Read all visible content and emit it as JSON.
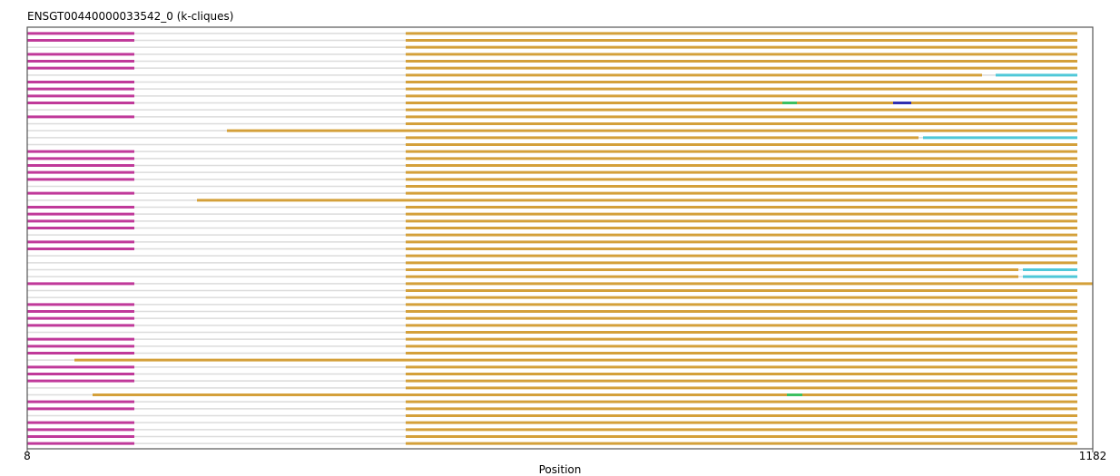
{
  "chart_data": {
    "type": "segments",
    "title": "ENSGT00440000033542_0 (k-cliques)",
    "xlabel": "Position",
    "xlim": [
      8,
      1182
    ],
    "xticks": [
      8,
      1182
    ],
    "colors": {
      "g": "#dcdcdc",
      "m": "#c0399a",
      "o": "#d4a03a",
      "c": "#4fc8d8",
      "b": "#3030b0",
      "e": "#3cc060"
    },
    "rows": [
      [
        [
          8,
          1165,
          "g"
        ],
        [
          8,
          126,
          "m"
        ],
        [
          425,
          1165,
          "o"
        ]
      ],
      [
        [
          8,
          1165,
          "g"
        ],
        [
          8,
          126,
          "m"
        ],
        [
          425,
          1165,
          "o"
        ]
      ],
      [
        [
          8,
          1165,
          "g"
        ],
        [
          425,
          1165,
          "o"
        ]
      ],
      [
        [
          8,
          1165,
          "g"
        ],
        [
          8,
          126,
          "m"
        ],
        [
          425,
          1165,
          "o"
        ]
      ],
      [
        [
          8,
          1165,
          "g"
        ],
        [
          8,
          126,
          "m"
        ],
        [
          425,
          1165,
          "o"
        ]
      ],
      [
        [
          8,
          1165,
          "g"
        ],
        [
          8,
          126,
          "m"
        ],
        [
          425,
          1165,
          "o"
        ]
      ],
      [
        [
          8,
          1165,
          "g"
        ],
        [
          425,
          1060,
          "o"
        ],
        [
          1075,
          1165,
          "c"
        ]
      ],
      [
        [
          8,
          1165,
          "g"
        ],
        [
          8,
          126,
          "m"
        ],
        [
          425,
          1165,
          "o"
        ]
      ],
      [
        [
          8,
          1165,
          "g"
        ],
        [
          8,
          126,
          "m"
        ],
        [
          425,
          1165,
          "o"
        ]
      ],
      [
        [
          8,
          1165,
          "g"
        ],
        [
          8,
          126,
          "m"
        ],
        [
          425,
          1165,
          "o"
        ]
      ],
      [
        [
          8,
          1165,
          "g"
        ],
        [
          8,
          126,
          "m"
        ],
        [
          425,
          1165,
          "o"
        ],
        [
          840,
          856,
          "e"
        ],
        [
          962,
          982,
          "b"
        ]
      ],
      [
        [
          8,
          1165,
          "g"
        ],
        [
          425,
          1165,
          "o"
        ]
      ],
      [
        [
          8,
          1165,
          "g"
        ],
        [
          8,
          126,
          "m"
        ],
        [
          425,
          1165,
          "o"
        ]
      ],
      [
        [
          8,
          1165,
          "g"
        ],
        [
          425,
          1165,
          "o"
        ]
      ],
      [
        [
          8,
          1165,
          "g"
        ],
        [
          228,
          1165,
          "o"
        ]
      ],
      [
        [
          8,
          1165,
          "g"
        ],
        [
          425,
          990,
          "o"
        ],
        [
          995,
          1165,
          "c"
        ]
      ],
      [
        [
          8,
          1165,
          "g"
        ],
        [
          425,
          1165,
          "o"
        ]
      ],
      [
        [
          8,
          1165,
          "g"
        ],
        [
          8,
          126,
          "m"
        ],
        [
          425,
          1165,
          "o"
        ]
      ],
      [
        [
          8,
          1165,
          "g"
        ],
        [
          8,
          126,
          "m"
        ],
        [
          425,
          1165,
          "o"
        ]
      ],
      [
        [
          8,
          1165,
          "g"
        ],
        [
          8,
          126,
          "m"
        ],
        [
          425,
          1165,
          "o"
        ]
      ],
      [
        [
          8,
          1165,
          "g"
        ],
        [
          8,
          126,
          "m"
        ],
        [
          425,
          1165,
          "o"
        ]
      ],
      [
        [
          8,
          1165,
          "g"
        ],
        [
          8,
          126,
          "m"
        ],
        [
          425,
          1165,
          "o"
        ]
      ],
      [
        [
          8,
          1165,
          "g"
        ],
        [
          425,
          1165,
          "o"
        ]
      ],
      [
        [
          8,
          1165,
          "g"
        ],
        [
          8,
          126,
          "m"
        ],
        [
          425,
          1165,
          "o"
        ]
      ],
      [
        [
          8,
          1165,
          "g"
        ],
        [
          195,
          1165,
          "o"
        ]
      ],
      [
        [
          8,
          1165,
          "g"
        ],
        [
          8,
          126,
          "m"
        ],
        [
          425,
          1165,
          "o"
        ]
      ],
      [
        [
          8,
          1165,
          "g"
        ],
        [
          8,
          126,
          "m"
        ],
        [
          425,
          1165,
          "o"
        ]
      ],
      [
        [
          8,
          1165,
          "g"
        ],
        [
          8,
          126,
          "m"
        ],
        [
          425,
          1165,
          "o"
        ]
      ],
      [
        [
          8,
          1165,
          "g"
        ],
        [
          8,
          126,
          "m"
        ],
        [
          425,
          1165,
          "o"
        ]
      ],
      [
        [
          8,
          1165,
          "g"
        ],
        [
          425,
          1165,
          "o"
        ]
      ],
      [
        [
          8,
          1165,
          "g"
        ],
        [
          8,
          126,
          "m"
        ],
        [
          425,
          1165,
          "o"
        ]
      ],
      [
        [
          8,
          1165,
          "g"
        ],
        [
          8,
          126,
          "m"
        ],
        [
          425,
          1165,
          "o"
        ]
      ],
      [
        [
          8,
          1165,
          "g"
        ],
        [
          425,
          1165,
          "o"
        ]
      ],
      [
        [
          8,
          1165,
          "g"
        ],
        [
          425,
          1165,
          "o"
        ]
      ],
      [
        [
          8,
          1165,
          "g"
        ],
        [
          425,
          1100,
          "o"
        ],
        [
          1105,
          1165,
          "c"
        ]
      ],
      [
        [
          8,
          1165,
          "g"
        ],
        [
          425,
          1100,
          "o"
        ],
        [
          1105,
          1165,
          "c"
        ]
      ],
      [
        [
          8,
          1165,
          "g"
        ],
        [
          8,
          126,
          "m"
        ],
        [
          425,
          1182,
          "o"
        ]
      ],
      [
        [
          8,
          1165,
          "g"
        ],
        [
          425,
          1165,
          "o"
        ]
      ],
      [
        [
          8,
          1165,
          "g"
        ],
        [
          425,
          1165,
          "o"
        ]
      ],
      [
        [
          8,
          1165,
          "g"
        ],
        [
          8,
          126,
          "m"
        ],
        [
          425,
          1165,
          "o"
        ]
      ],
      [
        [
          8,
          1165,
          "g"
        ],
        [
          8,
          126,
          "m"
        ],
        [
          425,
          1165,
          "o"
        ]
      ],
      [
        [
          8,
          1165,
          "g"
        ],
        [
          8,
          126,
          "m"
        ],
        [
          425,
          1165,
          "o"
        ]
      ],
      [
        [
          8,
          1165,
          "g"
        ],
        [
          8,
          126,
          "m"
        ],
        [
          425,
          1165,
          "o"
        ]
      ],
      [
        [
          8,
          1165,
          "g"
        ],
        [
          425,
          1165,
          "o"
        ]
      ],
      [
        [
          8,
          1165,
          "g"
        ],
        [
          8,
          126,
          "m"
        ],
        [
          425,
          1165,
          "o"
        ]
      ],
      [
        [
          8,
          1165,
          "g"
        ],
        [
          8,
          126,
          "m"
        ],
        [
          425,
          1165,
          "o"
        ]
      ],
      [
        [
          8,
          1165,
          "g"
        ],
        [
          8,
          126,
          "m"
        ],
        [
          425,
          1165,
          "o"
        ]
      ],
      [
        [
          8,
          1165,
          "g"
        ],
        [
          60,
          1165,
          "o"
        ]
      ],
      [
        [
          8,
          1165,
          "g"
        ],
        [
          8,
          126,
          "m"
        ],
        [
          425,
          1165,
          "o"
        ]
      ],
      [
        [
          8,
          1165,
          "g"
        ],
        [
          8,
          126,
          "m"
        ],
        [
          425,
          1165,
          "o"
        ]
      ],
      [
        [
          8,
          1165,
          "g"
        ],
        [
          8,
          126,
          "m"
        ],
        [
          425,
          1165,
          "o"
        ]
      ],
      [
        [
          8,
          1165,
          "g"
        ],
        [
          425,
          1165,
          "o"
        ]
      ],
      [
        [
          8,
          1165,
          "g"
        ],
        [
          80,
          1165,
          "o"
        ],
        [
          845,
          862,
          "e"
        ]
      ],
      [
        [
          8,
          1165,
          "g"
        ],
        [
          8,
          126,
          "m"
        ],
        [
          425,
          1165,
          "o"
        ]
      ],
      [
        [
          8,
          1165,
          "g"
        ],
        [
          8,
          126,
          "m"
        ],
        [
          425,
          1165,
          "o"
        ]
      ],
      [
        [
          8,
          1165,
          "g"
        ],
        [
          425,
          1165,
          "o"
        ]
      ],
      [
        [
          8,
          1165,
          "g"
        ],
        [
          8,
          126,
          "m"
        ],
        [
          425,
          1165,
          "o"
        ]
      ],
      [
        [
          8,
          1165,
          "g"
        ],
        [
          8,
          126,
          "m"
        ],
        [
          425,
          1165,
          "o"
        ]
      ],
      [
        [
          8,
          1165,
          "g"
        ],
        [
          8,
          126,
          "m"
        ],
        [
          425,
          1165,
          "o"
        ]
      ],
      [
        [
          8,
          1165,
          "g"
        ],
        [
          8,
          126,
          "m"
        ],
        [
          425,
          1165,
          "o"
        ]
      ]
    ]
  }
}
